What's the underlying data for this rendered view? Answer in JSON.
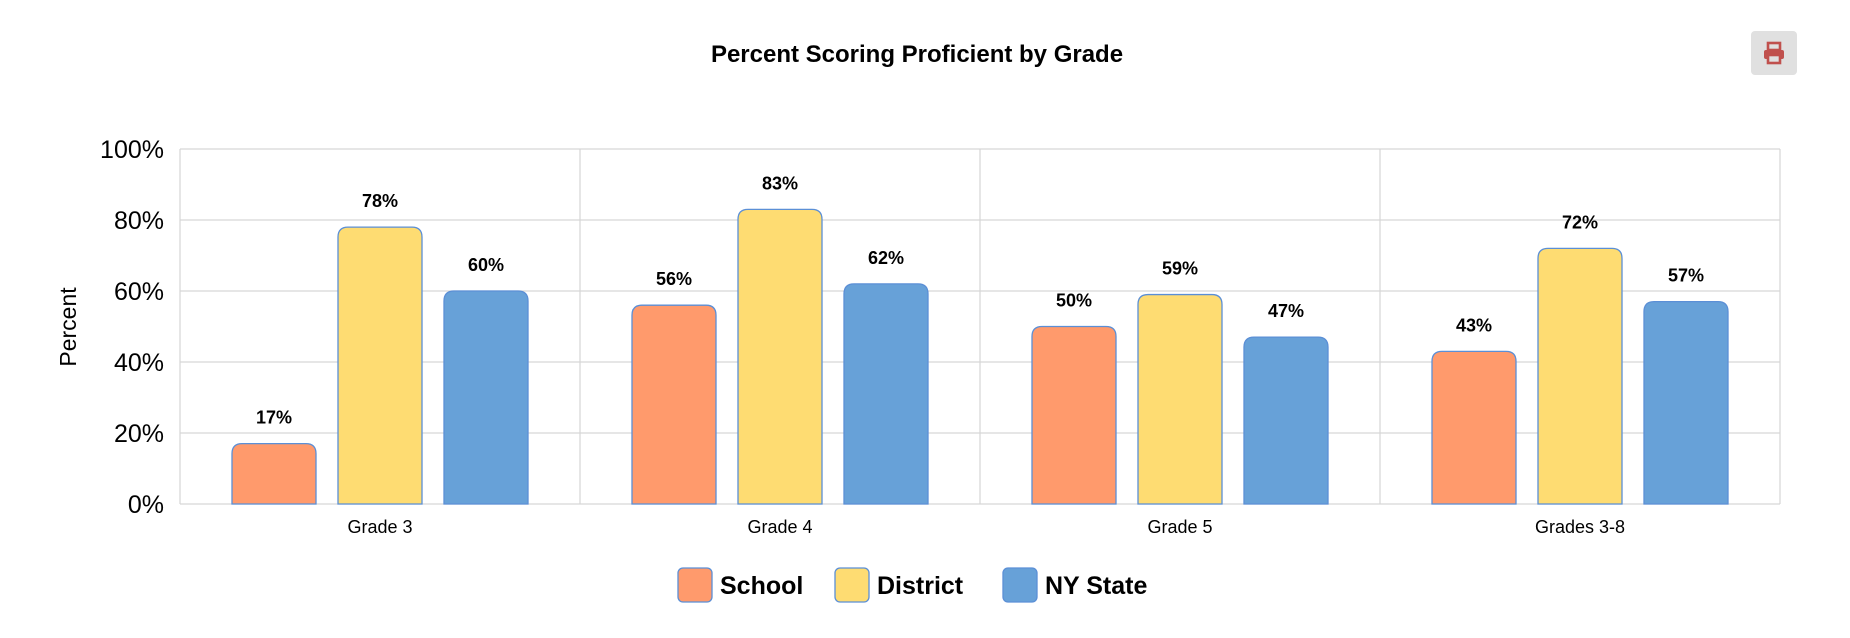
{
  "toolbar": {
    "print_icon": "printer-icon"
  },
  "colors": {
    "school": "#ff9a6c",
    "district": "#fedc72",
    "state": "#67a1d8",
    "bar_border": "#5b8fd6",
    "grid": "#d6d6d6",
    "print_icon": "#c0504d"
  },
  "chart_data": {
    "type": "bar",
    "title": "Percent Scoring Proficient by Grade",
    "xlabel": "",
    "ylabel": "Percent",
    "ylim": [
      0,
      100
    ],
    "yticks": [
      0,
      20,
      40,
      60,
      80,
      100
    ],
    "ytick_labels": [
      "0%",
      "20%",
      "40%",
      "60%",
      "80%",
      "100%"
    ],
    "categories": [
      "Grade 3",
      "Grade 4",
      "Grade 5",
      "Grades 3-8"
    ],
    "series": [
      {
        "name": "School",
        "color": "#ff9a6c",
        "values": [
          17,
          56,
          50,
          43
        ]
      },
      {
        "name": "District",
        "color": "#fedc72",
        "values": [
          78,
          83,
          59,
          72
        ]
      },
      {
        "name": "NY State",
        "color": "#67a1d8",
        "values": [
          60,
          62,
          47,
          57
        ]
      }
    ],
    "value_suffix": "%",
    "grid": true,
    "legend_position": "bottom-center"
  }
}
